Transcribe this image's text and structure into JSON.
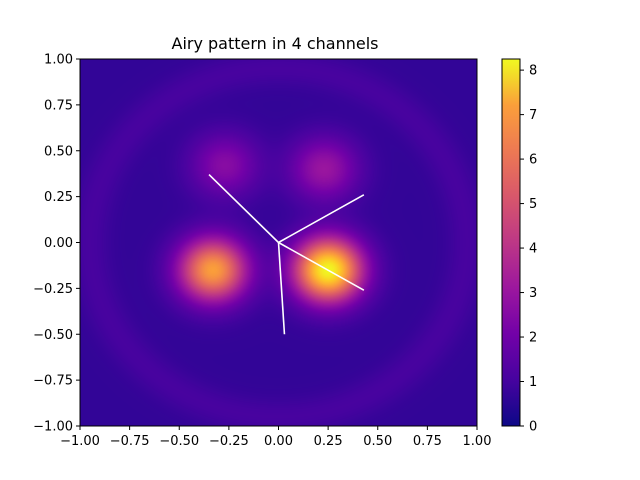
{
  "chart_data": {
    "type": "heatmap",
    "title": "Airy pattern in 4 channels",
    "xlabel": "",
    "ylabel": "",
    "xlim": [
      -1.0,
      1.0
    ],
    "ylim": [
      -1.0,
      1.0
    ],
    "xticks": [
      "−1.00",
      "−0.75",
      "−0.50",
      "−0.25",
      "0.00",
      "0.25",
      "0.50",
      "0.75",
      "1.00"
    ],
    "xtick_values": [
      -1.0,
      -0.75,
      -0.5,
      -0.25,
      0.0,
      0.25,
      0.5,
      0.75,
      1.0
    ],
    "yticks": [
      "−1.00",
      "−0.75",
      "−0.50",
      "−0.25",
      "0.00",
      "0.25",
      "0.50",
      "0.75",
      "1.00"
    ],
    "ytick_values": [
      -1.0,
      -0.75,
      -0.5,
      -0.25,
      0.0,
      0.25,
      0.5,
      0.75,
      1.0
    ],
    "colormap": "plasma",
    "colorbar": {
      "min": 0,
      "max": 8.25,
      "ticks": [
        "0",
        "1",
        "2",
        "3",
        "4",
        "5",
        "6",
        "7",
        "8"
      ],
      "tick_values": [
        0,
        1,
        2,
        3,
        4,
        5,
        6,
        7,
        8
      ]
    },
    "lobes": [
      {
        "x": 0.25,
        "y": -0.15,
        "peak": 8.2
      },
      {
        "x": -0.33,
        "y": -0.15,
        "peak": 6.4
      },
      {
        "x": 0.23,
        "y": 0.4,
        "peak": 2.7
      },
      {
        "x": -0.27,
        "y": 0.42,
        "peak": 2.3
      }
    ],
    "background_level": 0.6,
    "channel_lines": [
      {
        "from": [
          0.0,
          0.0
        ],
        "to": [
          -0.35,
          0.37
        ]
      },
      {
        "from": [
          0.0,
          0.0
        ],
        "to": [
          0.43,
          0.26
        ]
      },
      {
        "from": [
          0.0,
          0.0
        ],
        "to": [
          0.43,
          -0.26
        ]
      },
      {
        "from": [
          0.0,
          0.0
        ],
        "to": [
          0.03,
          -0.5
        ]
      }
    ],
    "line_color": "#ffffff"
  }
}
